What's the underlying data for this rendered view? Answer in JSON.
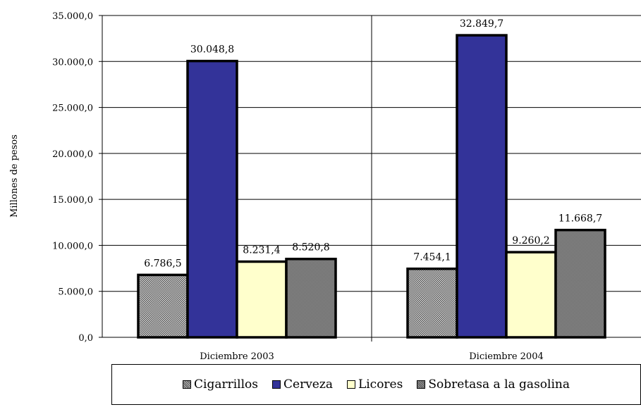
{
  "chart_data": {
    "type": "bar",
    "title": "",
    "xlabel": "",
    "ylabel": "Millones de pesos",
    "ylim": [
      0,
      35000
    ],
    "y_ticks": [
      "0,0",
      "5.000,0",
      "10.000,0",
      "15.000,0",
      "20.000,0",
      "25.000,0",
      "30.000,0",
      "35.000,0"
    ],
    "categories": [
      "Diciembre 2003",
      "Diciembre 2004"
    ],
    "grid": "horizontal",
    "legend_position": "bottom",
    "series": [
      {
        "name": "Cigarrillos",
        "values": [
          6786.5,
          7454.1
        ],
        "labels": [
          "6.786,5",
          "7.454,1"
        ],
        "color": "#a8a8a8",
        "pattern": "dots"
      },
      {
        "name": "Cerveza",
        "values": [
          30048.8,
          32849.7
        ],
        "labels": [
          "30.048,8",
          "32.849,7"
        ],
        "color": "#333399",
        "pattern": "solid"
      },
      {
        "name": "Licores",
        "values": [
          8231.4,
          9260.2
        ],
        "labels": [
          "8.231,4",
          "9.260,2"
        ],
        "color": "#ffffcc",
        "pattern": "solid"
      },
      {
        "name": "Sobretasa a la gasolina",
        "values": [
          8520.8,
          11668.7
        ],
        "labels": [
          "8.520,8",
          "11.668,7"
        ],
        "color": "#808080",
        "pattern": "fine"
      }
    ]
  }
}
